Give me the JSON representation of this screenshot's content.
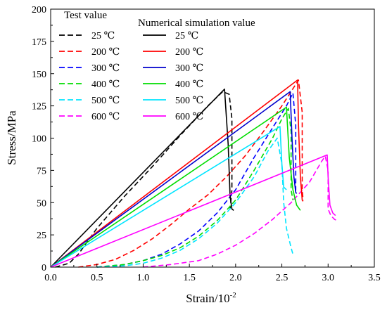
{
  "chart_data": {
    "type": "line",
    "xlabel": "Strain/10",
    "xlabel_exponent": "-2",
    "ylabel": "Stress/MPa",
    "xlim": [
      0,
      3.5
    ],
    "ylim": [
      0,
      200
    ],
    "x_ticks": [
      "0.0",
      "0.5",
      "1.0",
      "1.5",
      "2.0",
      "2.5",
      "3.0",
      "3.5"
    ],
    "y_ticks": [
      "0",
      "25",
      "50",
      "75",
      "100",
      "125",
      "150",
      "175",
      "200"
    ],
    "grid": false,
    "legend": {
      "placement": "top-left",
      "test_title": "Test value",
      "sim_title": "Numerical simulation value"
    },
    "series": [
      {
        "name": "25 ℃",
        "group": "test",
        "color": "#000000",
        "dash": true,
        "points": [
          [
            0.05,
            0
          ],
          [
            0.2,
            3
          ],
          [
            0.3,
            10
          ],
          [
            0.5,
            30
          ],
          [
            0.8,
            55
          ],
          [
            1.1,
            78
          ],
          [
            1.4,
            102
          ],
          [
            1.7,
            125
          ],
          [
            1.86,
            136
          ],
          [
            1.93,
            134
          ],
          [
            1.96,
            115
          ],
          [
            1.96,
            60
          ],
          [
            1.94,
            45
          ]
        ]
      },
      {
        "name": "200 ℃",
        "group": "test",
        "color": "#ff0000",
        "dash": true,
        "points": [
          [
            0.3,
            0
          ],
          [
            0.5,
            2
          ],
          [
            0.7,
            6
          ],
          [
            0.9,
            13
          ],
          [
            1.1,
            22
          ],
          [
            1.3,
            33
          ],
          [
            1.5,
            45
          ],
          [
            1.7,
            56
          ],
          [
            1.9,
            70
          ],
          [
            2.1,
            86
          ],
          [
            2.3,
            105
          ],
          [
            2.5,
            125
          ],
          [
            2.68,
            145
          ],
          [
            2.72,
            120
          ],
          [
            2.72,
            60
          ],
          [
            2.73,
            52
          ]
        ]
      },
      {
        "name": "300 ℃",
        "group": "test",
        "color": "#0000ff",
        "dash": true,
        "points": [
          [
            0.5,
            0
          ],
          [
            0.8,
            2
          ],
          [
            1.0,
            5
          ],
          [
            1.2,
            10
          ],
          [
            1.4,
            18
          ],
          [
            1.6,
            28
          ],
          [
            1.8,
            42
          ],
          [
            2.0,
            60
          ],
          [
            2.2,
            85
          ],
          [
            2.4,
            108
          ],
          [
            2.55,
            125
          ],
          [
            2.62,
            135
          ],
          [
            2.65,
            110
          ],
          [
            2.65,
            60
          ],
          [
            2.64,
            57
          ]
        ]
      },
      {
        "name": "400 ℃",
        "group": "test",
        "color": "#00dd00",
        "dash": true,
        "points": [
          [
            0.5,
            0
          ],
          [
            0.8,
            2
          ],
          [
            1.0,
            5
          ],
          [
            1.2,
            9
          ],
          [
            1.4,
            15
          ],
          [
            1.6,
            24
          ],
          [
            1.8,
            36
          ],
          [
            2.0,
            52
          ],
          [
            2.2,
            75
          ],
          [
            2.4,
            100
          ],
          [
            2.5,
            115
          ],
          [
            2.57,
            123
          ],
          [
            2.6,
            105
          ],
          [
            2.6,
            60
          ],
          [
            2.62,
            52
          ]
        ]
      },
      {
        "name": "500 ℃",
        "group": "test",
        "color": "#00e5ff",
        "dash": true,
        "points": [
          [
            0.5,
            0
          ],
          [
            0.8,
            1
          ],
          [
            1.0,
            3
          ],
          [
            1.2,
            7
          ],
          [
            1.4,
            13
          ],
          [
            1.6,
            22
          ],
          [
            1.8,
            34
          ],
          [
            2.0,
            50
          ],
          [
            2.2,
            70
          ],
          [
            2.35,
            90
          ],
          [
            2.45,
            100
          ],
          [
            2.5,
            80
          ],
          [
            2.52,
            50
          ],
          [
            2.55,
            30
          ],
          [
            2.6,
            15
          ],
          [
            2.62,
            10
          ]
        ]
      },
      {
        "name": "600 ℃",
        "group": "test",
        "color": "#ff00ff",
        "dash": true,
        "points": [
          [
            1.0,
            0
          ],
          [
            1.3,
            2
          ],
          [
            1.6,
            5
          ],
          [
            1.8,
            10
          ],
          [
            2.0,
            17
          ],
          [
            2.2,
            26
          ],
          [
            2.4,
            37
          ],
          [
            2.6,
            50
          ],
          [
            2.8,
            66
          ],
          [
            2.93,
            82
          ],
          [
            2.97,
            86
          ],
          [
            3.0,
            75
          ],
          [
            3.0,
            45
          ],
          [
            3.03,
            40
          ],
          [
            3.07,
            37
          ],
          [
            3.1,
            36
          ]
        ]
      },
      {
        "name": "25 ℃",
        "group": "sim",
        "color": "#000000",
        "dash": false,
        "points": [
          [
            0,
            0
          ],
          [
            1.88,
            138
          ],
          [
            1.92,
            95
          ],
          [
            1.94,
            55
          ],
          [
            1.96,
            45
          ],
          [
            1.98,
            44
          ]
        ]
      },
      {
        "name": "200 ℃",
        "group": "sim",
        "color": "#ff0000",
        "dash": false,
        "points": [
          [
            0,
            0
          ],
          [
            2.67,
            145
          ],
          [
            2.68,
            110
          ],
          [
            2.7,
            70
          ],
          [
            2.72,
            52
          ],
          [
            2.73,
            51
          ]
        ]
      },
      {
        "name": "300 ℃",
        "group": "sim",
        "color": "#0000cc",
        "dash": false,
        "points": [
          [
            0,
            0
          ],
          [
            2.59,
            136
          ],
          [
            2.61,
            100
          ],
          [
            2.63,
            70
          ],
          [
            2.65,
            58
          ],
          [
            2.66,
            57
          ]
        ]
      },
      {
        "name": "400 ℃",
        "group": "sim",
        "color": "#00dd00",
        "dash": false,
        "points": [
          [
            0,
            0
          ],
          [
            2.55,
            124
          ],
          [
            2.58,
            85
          ],
          [
            2.62,
            60
          ],
          [
            2.66,
            48
          ],
          [
            2.7,
            44
          ]
        ]
      },
      {
        "name": "500 ℃",
        "group": "sim",
        "color": "#00e5ff",
        "dash": false,
        "points": [
          [
            0,
            0
          ],
          [
            2.48,
            109
          ],
          [
            2.5,
            80
          ],
          [
            2.52,
            62
          ],
          [
            2.55,
            60
          ]
        ]
      },
      {
        "name": "600 ℃",
        "group": "sim",
        "color": "#ff00ff",
        "dash": false,
        "points": [
          [
            0,
            0
          ],
          [
            2.99,
            87
          ],
          [
            3.0,
            70
          ],
          [
            3.02,
            48
          ],
          [
            3.05,
            42
          ],
          [
            3.08,
            40
          ]
        ]
      }
    ]
  }
}
